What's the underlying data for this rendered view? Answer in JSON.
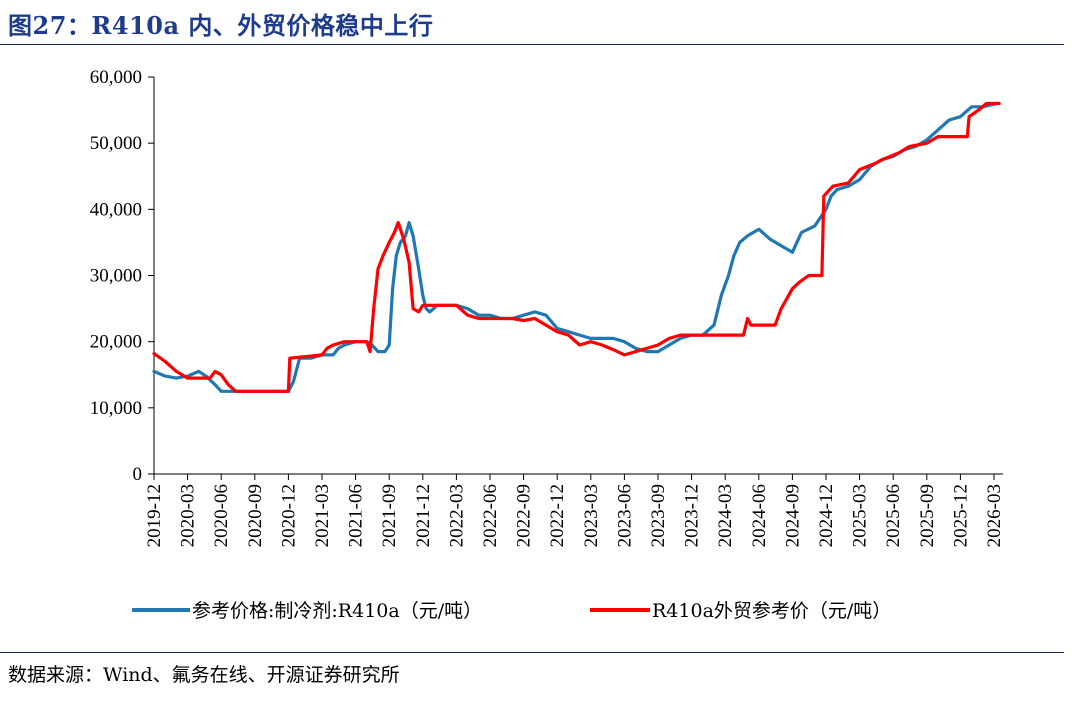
{
  "figure": {
    "title": "图27：R410a 内、外贸价格稳中上行",
    "source": "数据来源：Wind、氟务在线、开源证券研究所"
  },
  "colors": {
    "series_domestic": "#1f77b4",
    "series_export": "#ff0000",
    "axis": "#000000"
  },
  "chart_data": {
    "type": "line",
    "title": "",
    "xlabel": "",
    "ylabel": "",
    "x_range": [
      "2019-12",
      "2026-03"
    ],
    "ylim": [
      0,
      60000
    ],
    "y_ticks": [
      0,
      10000,
      20000,
      30000,
      40000,
      50000,
      60000
    ],
    "y_tick_labels": [
      "0",
      "10,000",
      "20,000",
      "30,000",
      "40,000",
      "50,000",
      "60,000"
    ],
    "x_tick_labels": [
      "2019-12",
      "2020-03",
      "2020-06",
      "2020-09",
      "2020-12",
      "2021-03",
      "2021-06",
      "2021-09",
      "2021-12",
      "2022-03",
      "2022-06",
      "2022-09",
      "2022-12",
      "2023-03",
      "2023-06",
      "2023-09",
      "2023-12",
      "2024-03",
      "2024-06",
      "2024-09",
      "2024-12",
      "2025-03",
      "2025-06",
      "2025-09",
      "2025-12",
      "2026-03"
    ],
    "grid": false,
    "legend_position": "bottom",
    "series": [
      {
        "name": "参考价格:制冷剂:R410a（元/吨）",
        "color": "#1f77b4",
        "points": [
          [
            "2019-12-01",
            15500
          ],
          [
            "2020-01-01",
            14800
          ],
          [
            "2020-02-01",
            14500
          ],
          [
            "2020-03-01",
            14800
          ],
          [
            "2020-04-01",
            15500
          ],
          [
            "2020-04-20",
            14800
          ],
          [
            "2020-05-15",
            13500
          ],
          [
            "2020-06-01",
            12500
          ],
          [
            "2020-09-01",
            12500
          ],
          [
            "2020-12-01",
            12500
          ],
          [
            "2020-12-15",
            14000
          ],
          [
            "2021-01-01",
            17500
          ],
          [
            "2021-02-01",
            17500
          ],
          [
            "2021-03-01",
            18000
          ],
          [
            "2021-04-01",
            18000
          ],
          [
            "2021-04-15",
            19000
          ],
          [
            "2021-05-01",
            19500
          ],
          [
            "2021-06-01",
            20000
          ],
          [
            "2021-07-01",
            20000
          ],
          [
            "2021-07-15",
            19500
          ],
          [
            "2021-08-01",
            18500
          ],
          [
            "2021-08-20",
            18500
          ],
          [
            "2021-09-01",
            19500
          ],
          [
            "2021-09-10",
            28000
          ],
          [
            "2021-09-20",
            33000
          ],
          [
            "2021-10-01",
            35000
          ],
          [
            "2021-10-15",
            36000
          ],
          [
            "2021-10-25",
            38000
          ],
          [
            "2021-11-05",
            36000
          ],
          [
            "2021-11-20",
            31000
          ],
          [
            "2021-12-01",
            27000
          ],
          [
            "2021-12-10",
            25000
          ],
          [
            "2021-12-20",
            24500
          ],
          [
            "2022-01-10",
            25500
          ],
          [
            "2022-03-01",
            25500
          ],
          [
            "2022-04-01",
            25000
          ],
          [
            "2022-05-01",
            24000
          ],
          [
            "2022-06-01",
            24000
          ],
          [
            "2022-07-01",
            23500
          ],
          [
            "2022-08-01",
            23500
          ],
          [
            "2022-09-01",
            24000
          ],
          [
            "2022-10-01",
            24500
          ],
          [
            "2022-11-01",
            24000
          ],
          [
            "2022-12-01",
            22000
          ],
          [
            "2023-01-01",
            21500
          ],
          [
            "2023-02-01",
            21000
          ],
          [
            "2023-03-01",
            20500
          ],
          [
            "2023-05-01",
            20500
          ],
          [
            "2023-06-01",
            20000
          ],
          [
            "2023-07-01",
            19000
          ],
          [
            "2023-08-01",
            18500
          ],
          [
            "2023-09-01",
            18500
          ],
          [
            "2023-10-01",
            19500
          ],
          [
            "2023-11-01",
            20500
          ],
          [
            "2023-12-01",
            21000
          ],
          [
            "2024-01-01",
            21000
          ],
          [
            "2024-02-01",
            22500
          ],
          [
            "2024-02-20",
            27000
          ],
          [
            "2024-03-10",
            30000
          ],
          [
            "2024-03-25",
            33000
          ],
          [
            "2024-04-10",
            35000
          ],
          [
            "2024-05-01",
            36000
          ],
          [
            "2024-06-01",
            37000
          ],
          [
            "2024-07-01",
            35500
          ],
          [
            "2024-08-01",
            34500
          ],
          [
            "2024-09-01",
            33500
          ],
          [
            "2024-09-25",
            36500
          ],
          [
            "2024-11-01",
            37500
          ],
          [
            "2024-12-01",
            40000
          ],
          [
            "2024-12-15",
            42000
          ],
          [
            "2025-01-01",
            43000
          ],
          [
            "2025-02-01",
            43500
          ],
          [
            "2025-03-01",
            44500
          ],
          [
            "2025-04-01",
            46500
          ],
          [
            "2025-05-01",
            47500
          ],
          [
            "2025-06-01",
            48000
          ],
          [
            "2025-07-01",
            49000
          ],
          [
            "2025-08-01",
            49500
          ],
          [
            "2025-09-01",
            50500
          ],
          [
            "2025-10-01",
            52000
          ],
          [
            "2025-11-01",
            53500
          ],
          [
            "2025-12-01",
            54000
          ],
          [
            "2026-01-01",
            55500
          ],
          [
            "2026-02-01",
            55500
          ],
          [
            "2026-03-10",
            56000
          ]
        ]
      },
      {
        "name": "R410a外贸参考价（元/吨）",
        "color": "#ff0000",
        "points": [
          [
            "2019-12-01",
            18200
          ],
          [
            "2020-01-01",
            17000
          ],
          [
            "2020-02-01",
            15500
          ],
          [
            "2020-03-01",
            14500
          ],
          [
            "2020-05-01",
            14500
          ],
          [
            "2020-05-15",
            15500
          ],
          [
            "2020-06-01",
            15000
          ],
          [
            "2020-06-20",
            13500
          ],
          [
            "2020-07-10",
            12500
          ],
          [
            "2020-09-01",
            12500
          ],
          [
            "2020-12-01",
            12500
          ],
          [
            "2020-12-05",
            17500
          ],
          [
            "2021-03-01",
            18000
          ],
          [
            "2021-03-15",
            19000
          ],
          [
            "2021-04-01",
            19500
          ],
          [
            "2021-05-01",
            20000
          ],
          [
            "2021-07-01",
            20000
          ],
          [
            "2021-07-10",
            18500
          ],
          [
            "2021-07-20",
            25000
          ],
          [
            "2021-08-01",
            31000
          ],
          [
            "2021-08-15",
            33000
          ],
          [
            "2021-09-01",
            35000
          ],
          [
            "2021-09-15",
            36500
          ],
          [
            "2021-09-25",
            38000
          ],
          [
            "2021-10-10",
            35500
          ],
          [
            "2021-10-25",
            32000
          ],
          [
            "2021-11-05",
            25000
          ],
          [
            "2021-11-20",
            24500
          ],
          [
            "2021-12-01",
            25500
          ],
          [
            "2022-03-01",
            25500
          ],
          [
            "2022-04-01",
            24000
          ],
          [
            "2022-05-01",
            23500
          ],
          [
            "2022-08-01",
            23500
          ],
          [
            "2022-09-01",
            23200
          ],
          [
            "2022-10-01",
            23500
          ],
          [
            "2022-11-01",
            22500
          ],
          [
            "2022-12-01",
            21500
          ],
          [
            "2023-01-01",
            21000
          ],
          [
            "2023-02-01",
            19500
          ],
          [
            "2023-03-01",
            20000
          ],
          [
            "2023-04-01",
            19500
          ],
          [
            "2023-05-01",
            18800
          ],
          [
            "2023-06-01",
            18000
          ],
          [
            "2023-07-01",
            18500
          ],
          [
            "2023-08-01",
            19000
          ],
          [
            "2023-09-01",
            19500
          ],
          [
            "2023-10-01",
            20500
          ],
          [
            "2023-11-01",
            21000
          ],
          [
            "2024-04-20",
            21000
          ],
          [
            "2024-05-01",
            23500
          ],
          [
            "2024-05-10",
            22500
          ],
          [
            "2024-07-15",
            22500
          ],
          [
            "2024-08-01",
            25000
          ],
          [
            "2024-09-01",
            28000
          ],
          [
            "2024-09-20",
            29000
          ],
          [
            "2024-10-15",
            30000
          ],
          [
            "2024-11-20",
            30000
          ],
          [
            "2024-11-25",
            42000
          ],
          [
            "2024-12-20",
            43500
          ],
          [
            "2025-02-01",
            44000
          ],
          [
            "2025-03-01",
            46000
          ],
          [
            "2025-04-15",
            47000
          ],
          [
            "2025-05-01",
            47500
          ],
          [
            "2025-06-15",
            48500
          ],
          [
            "2025-07-15",
            49500
          ],
          [
            "2025-09-01",
            50000
          ],
          [
            "2025-10-01",
            51000
          ],
          [
            "2025-12-20",
            51000
          ],
          [
            "2025-12-25",
            54000
          ],
          [
            "2026-01-20",
            55000
          ],
          [
            "2026-02-10",
            56000
          ],
          [
            "2026-03-15",
            56000
          ]
        ]
      }
    ]
  }
}
